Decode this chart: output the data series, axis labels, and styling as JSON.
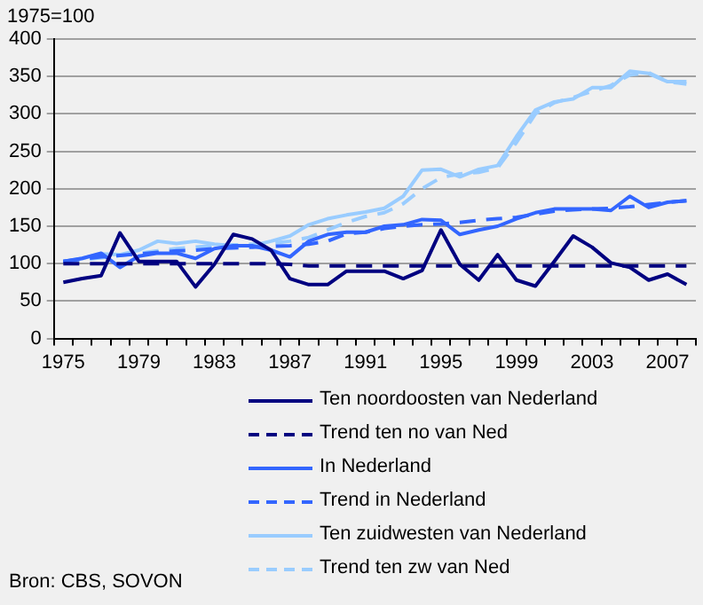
{
  "chart_data": {
    "type": "line",
    "ylabel": "1975=100",
    "categories": [
      "1975",
      null,
      null,
      null,
      "1979",
      null,
      null,
      null,
      "1983",
      null,
      null,
      null,
      "1987",
      null,
      null,
      null,
      "1991",
      null,
      null,
      null,
      "1995",
      null,
      null,
      null,
      "1999",
      null,
      null,
      null,
      "2003",
      null,
      null,
      null,
      "2007",
      null
    ],
    "series": [
      {
        "name": "Ten noordoosten van Nederland",
        "color": "#000080",
        "line_style": "solid",
        "values": [
          75,
          80,
          84,
          141,
          103,
          103,
          103,
          69,
          99,
          139,
          133,
          118,
          80,
          72,
          72,
          90,
          90,
          90,
          80,
          91,
          145,
          99,
          78,
          112,
          78,
          70,
          103,
          137,
          122,
          101,
          95,
          78,
          86,
          72
        ]
      },
      {
        "name": "Trend ten no van Ned",
        "color": "#000080",
        "line_style": "dashed",
        "values": [
          100,
          100,
          100,
          100,
          100,
          100,
          100,
          100,
          100,
          100,
          100,
          100,
          99,
          97,
          97,
          97,
          97,
          97,
          97,
          97,
          97,
          97,
          97,
          97,
          97,
          97,
          97,
          97,
          97,
          97,
          97,
          97,
          97,
          97
        ]
      },
      {
        "name": "In Nederland",
        "color": "#3366ff",
        "line_style": "solid",
        "values": [
          103,
          107,
          114,
          95,
          110,
          114,
          114,
          107,
          120,
          124,
          124,
          118,
          109,
          130,
          139,
          142,
          142,
          150,
          152,
          159,
          158,
          139,
          145,
          150,
          160,
          168,
          173,
          173,
          173,
          171,
          190,
          175,
          182,
          184
        ]
      },
      {
        "name": "Trend in Nederland",
        "color": "#3366ff",
        "line_style": "dashed",
        "values": [
          103,
          106,
          109,
          111,
          113,
          115,
          117,
          118,
          120,
          121,
          122,
          123,
          124,
          126,
          130,
          140,
          142,
          147,
          150,
          152,
          153,
          155,
          158,
          160,
          162,
          166,
          170,
          172,
          173,
          174,
          176,
          179,
          182,
          184
        ]
      },
      {
        "name": "Ten zuidwesten van Nederland",
        "color": "#99ccff",
        "line_style": "solid",
        "values": [
          103,
          107,
          113,
          112,
          118,
          130,
          127,
          130,
          126,
          124,
          124,
          130,
          137,
          152,
          160,
          165,
          169,
          174,
          190,
          225,
          226,
          216,
          226,
          231,
          270,
          305,
          316,
          320,
          335,
          335,
          357,
          354,
          343,
          343
        ]
      },
      {
        "name": "Trend ten zw van Ned",
        "color": "#99ccff",
        "line_style": "dashed",
        "values": [
          103,
          105,
          108,
          111,
          114,
          117,
          120,
          122,
          124,
          125,
          126,
          127,
          130,
          135,
          145,
          155,
          163,
          168,
          180,
          200,
          215,
          220,
          222,
          228,
          262,
          300,
          315,
          322,
          330,
          338,
          352,
          355,
          343,
          340
        ]
      }
    ],
    "ylim": [
      0,
      400
    ],
    "yticks": [
      0,
      50,
      100,
      150,
      200,
      250,
      300,
      350,
      400
    ],
    "grid": "y",
    "legend": "bottom",
    "marker": "none",
    "annotations": [
      "Bron: CBS, SOVON"
    ]
  }
}
